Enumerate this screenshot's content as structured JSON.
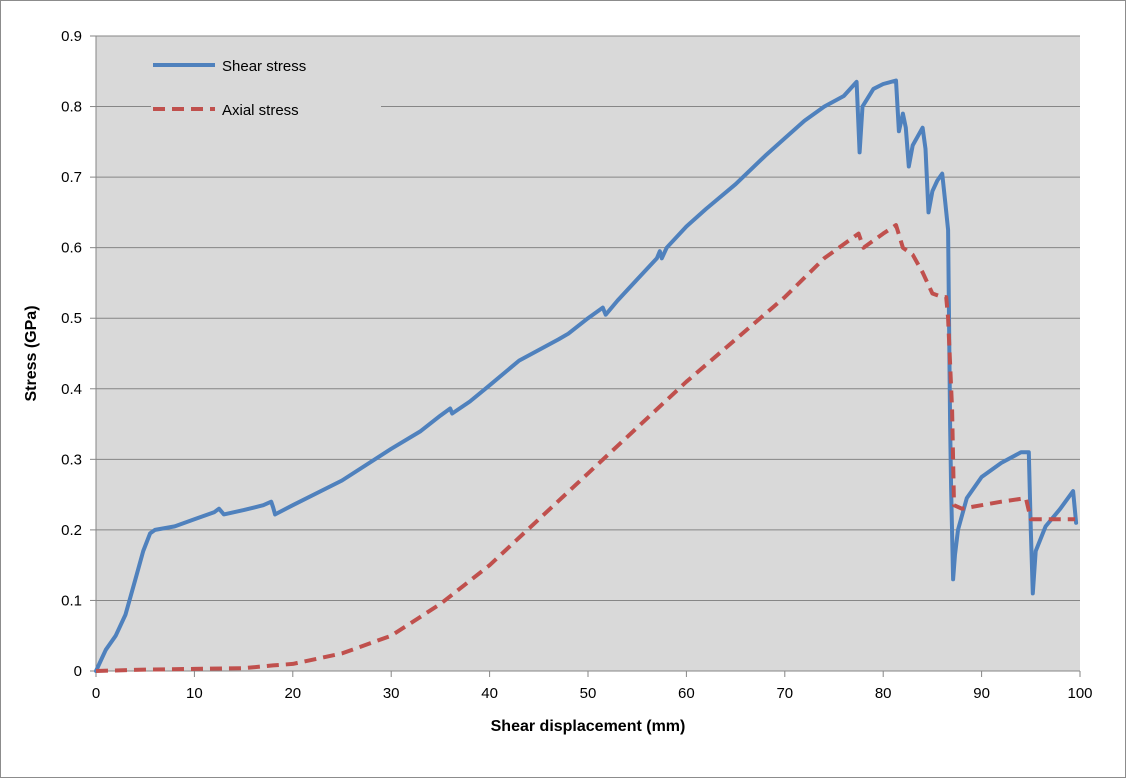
{
  "chart_data": {
    "type": "line",
    "title": "",
    "xlabel": "Shear displacement (mm)",
    "ylabel": "Stress (GPa)",
    "xlim": [
      0,
      100
    ],
    "ylim": [
      0,
      0.9
    ],
    "x_ticks": [
      "0",
      "10",
      "20",
      "30",
      "40",
      "50",
      "60",
      "70",
      "80",
      "90",
      "100"
    ],
    "y_ticks": [
      "0",
      "0.1",
      "0.2",
      "0.3",
      "0.4",
      "0.5",
      "0.6",
      "0.7",
      "0.8",
      "0.9"
    ],
    "grid": true,
    "legend_position": "top-left",
    "plot_background": "#d9d9d9",
    "series": [
      {
        "name": "Shear stress",
        "color": "#4f81bd",
        "style": "solid",
        "points": [
          [
            0,
            0
          ],
          [
            0.5,
            0.015
          ],
          [
            1,
            0.03
          ],
          [
            2,
            0.05
          ],
          [
            3,
            0.08
          ],
          [
            4,
            0.13
          ],
          [
            4.8,
            0.17
          ],
          [
            5.5,
            0.195
          ],
          [
            6,
            0.2
          ],
          [
            8,
            0.205
          ],
          [
            10,
            0.215
          ],
          [
            12,
            0.225
          ],
          [
            12.5,
            0.23
          ],
          [
            13,
            0.222
          ],
          [
            15,
            0.228
          ],
          [
            17,
            0.235
          ],
          [
            17.8,
            0.24
          ],
          [
            18,
            0.232
          ],
          [
            18.2,
            0.222
          ],
          [
            20,
            0.235
          ],
          [
            25,
            0.27
          ],
          [
            30,
            0.315
          ],
          [
            33,
            0.34
          ],
          [
            35,
            0.362
          ],
          [
            36,
            0.372
          ],
          [
            36.2,
            0.365
          ],
          [
            38,
            0.382
          ],
          [
            40,
            0.405
          ],
          [
            43,
            0.44
          ],
          [
            45,
            0.455
          ],
          [
            47,
            0.47
          ],
          [
            48,
            0.478
          ],
          [
            50,
            0.5
          ],
          [
            51.5,
            0.515
          ],
          [
            51.8,
            0.505
          ],
          [
            53,
            0.525
          ],
          [
            55,
            0.555
          ],
          [
            57,
            0.585
          ],
          [
            57.3,
            0.595
          ],
          [
            57.5,
            0.585
          ],
          [
            58,
            0.6
          ],
          [
            60,
            0.63
          ],
          [
            62,
            0.655
          ],
          [
            65,
            0.69
          ],
          [
            68,
            0.73
          ],
          [
            70,
            0.755
          ],
          [
            72,
            0.78
          ],
          [
            74,
            0.8
          ],
          [
            76,
            0.815
          ],
          [
            77.3,
            0.835
          ],
          [
            77.6,
            0.735
          ],
          [
            77.9,
            0.8
          ],
          [
            79,
            0.825
          ],
          [
            80,
            0.832
          ],
          [
            81.3,
            0.837
          ],
          [
            81.6,
            0.765
          ],
          [
            82,
            0.79
          ],
          [
            82.3,
            0.77
          ],
          [
            82.6,
            0.715
          ],
          [
            83,
            0.745
          ],
          [
            84,
            0.77
          ],
          [
            84.3,
            0.74
          ],
          [
            84.6,
            0.65
          ],
          [
            85,
            0.68
          ],
          [
            85.5,
            0.695
          ],
          [
            86,
            0.705
          ],
          [
            86.3,
            0.665
          ],
          [
            86.6,
            0.625
          ],
          [
            86.8,
            0.35
          ],
          [
            86.9,
            0.26
          ],
          [
            87.1,
            0.13
          ],
          [
            87.3,
            0.165
          ],
          [
            87.6,
            0.2
          ],
          [
            88.5,
            0.245
          ],
          [
            90,
            0.275
          ],
          [
            92,
            0.295
          ],
          [
            94,
            0.31
          ],
          [
            94.8,
            0.31
          ],
          [
            95,
            0.2
          ],
          [
            95.2,
            0.11
          ],
          [
            95.5,
            0.17
          ],
          [
            96.5,
            0.205
          ],
          [
            98,
            0.23
          ],
          [
            99.3,
            0.255
          ],
          [
            99.6,
            0.21
          ]
        ]
      },
      {
        "name": "Axial stress",
        "color": "#c0504d",
        "style": "dashed",
        "points": [
          [
            0,
            0
          ],
          [
            5,
            0.002
          ],
          [
            10,
            0.003
          ],
          [
            15,
            0.004
          ],
          [
            18,
            0.008
          ],
          [
            20,
            0.01
          ],
          [
            25,
            0.025
          ],
          [
            30,
            0.05
          ],
          [
            35,
            0.095
          ],
          [
            40,
            0.15
          ],
          [
            45,
            0.215
          ],
          [
            50,
            0.28
          ],
          [
            55,
            0.345
          ],
          [
            60,
            0.41
          ],
          [
            65,
            0.47
          ],
          [
            70,
            0.53
          ],
          [
            74,
            0.585
          ],
          [
            77.5,
            0.62
          ],
          [
            78,
            0.6
          ],
          [
            80,
            0.62
          ],
          [
            81.3,
            0.632
          ],
          [
            82,
            0.6
          ],
          [
            83,
            0.59
          ],
          [
            84,
            0.565
          ],
          [
            85,
            0.535
          ],
          [
            86,
            0.53
          ],
          [
            86.4,
            0.53
          ],
          [
            86.6,
            0.5
          ],
          [
            87,
            0.37
          ],
          [
            87.2,
            0.235
          ],
          [
            88,
            0.23
          ],
          [
            90,
            0.235
          ],
          [
            92,
            0.24
          ],
          [
            94.5,
            0.245
          ],
          [
            95,
            0.215
          ],
          [
            97,
            0.215
          ],
          [
            99.5,
            0.215
          ]
        ]
      }
    ]
  }
}
